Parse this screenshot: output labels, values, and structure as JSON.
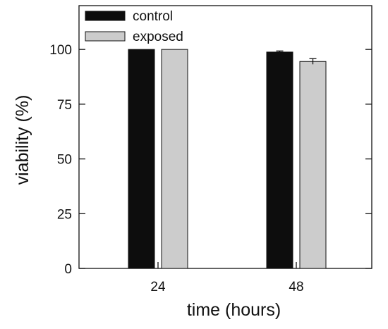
{
  "chart_data": {
    "type": "bar",
    "xlabel": "time (hours)",
    "ylabel": "viability (%)",
    "ylim": [
      0,
      120
    ],
    "yticks": [
      0,
      25,
      50,
      75,
      100
    ],
    "grid": false,
    "legend_position": "top-left",
    "categories": [
      "24",
      "48"
    ],
    "series": [
      {
        "name": "control",
        "values": [
          100,
          98.8
        ],
        "errors": [
          0,
          0.5
        ],
        "color": "#0d0d0d"
      },
      {
        "name": "exposed",
        "values": [
          100,
          94.5
        ],
        "errors": [
          0,
          1.3
        ],
        "color": "#cccccc"
      }
    ]
  }
}
